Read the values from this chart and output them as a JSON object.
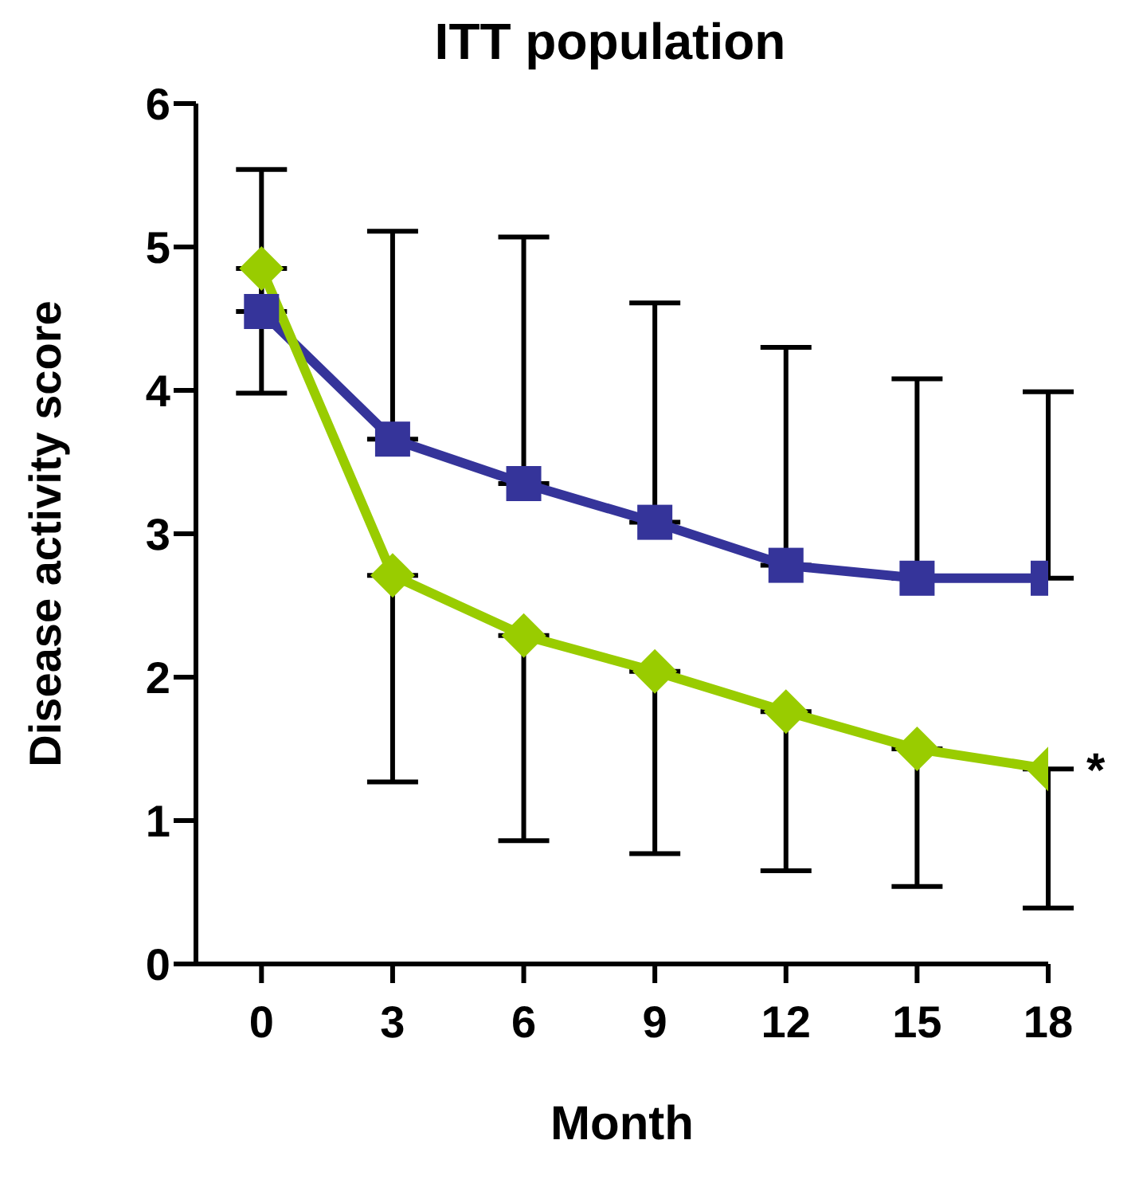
{
  "chart_data": {
    "type": "line",
    "title": "ITT population",
    "xlabel": "Month",
    "ylabel": "Disease activity score",
    "x": [
      0,
      3,
      6,
      9,
      12,
      15,
      18
    ],
    "xlim": [
      -1.5,
      18
    ],
    "xticks": [
      0,
      3,
      6,
      9,
      12,
      15,
      18
    ],
    "ylim": [
      0,
      6
    ],
    "yticks": [
      0,
      1,
      2,
      3,
      4,
      5,
      6
    ],
    "series": [
      {
        "color": "#35349a",
        "marker": "square",
        "values": [
          4.55,
          3.66,
          3.35,
          3.08,
          2.78,
          2.69,
          2.69
        ],
        "errors": [
          [
            4.55,
            5.54
          ],
          [
            3.66,
            5.11
          ],
          [
            3.35,
            5.07
          ],
          [
            3.08,
            4.61
          ],
          [
            2.78,
            4.3
          ],
          [
            2.69,
            4.08
          ],
          [
            2.69,
            3.99
          ]
        ]
      },
      {
        "color": "#99cc00",
        "marker": "diamond",
        "values": [
          4.85,
          2.71,
          2.29,
          2.04,
          1.76,
          1.5,
          1.36
        ],
        "errors": [
          [
            3.98,
            4.85
          ],
          [
            1.27,
            2.71
          ],
          [
            0.86,
            2.29
          ],
          [
            0.77,
            2.04
          ],
          [
            0.65,
            1.76
          ],
          [
            0.54,
            1.5
          ],
          [
            0.39,
            1.36
          ]
        ]
      }
    ],
    "annotations": [
      {
        "text": "*",
        "x": 18,
        "y": 1.36
      }
    ]
  }
}
